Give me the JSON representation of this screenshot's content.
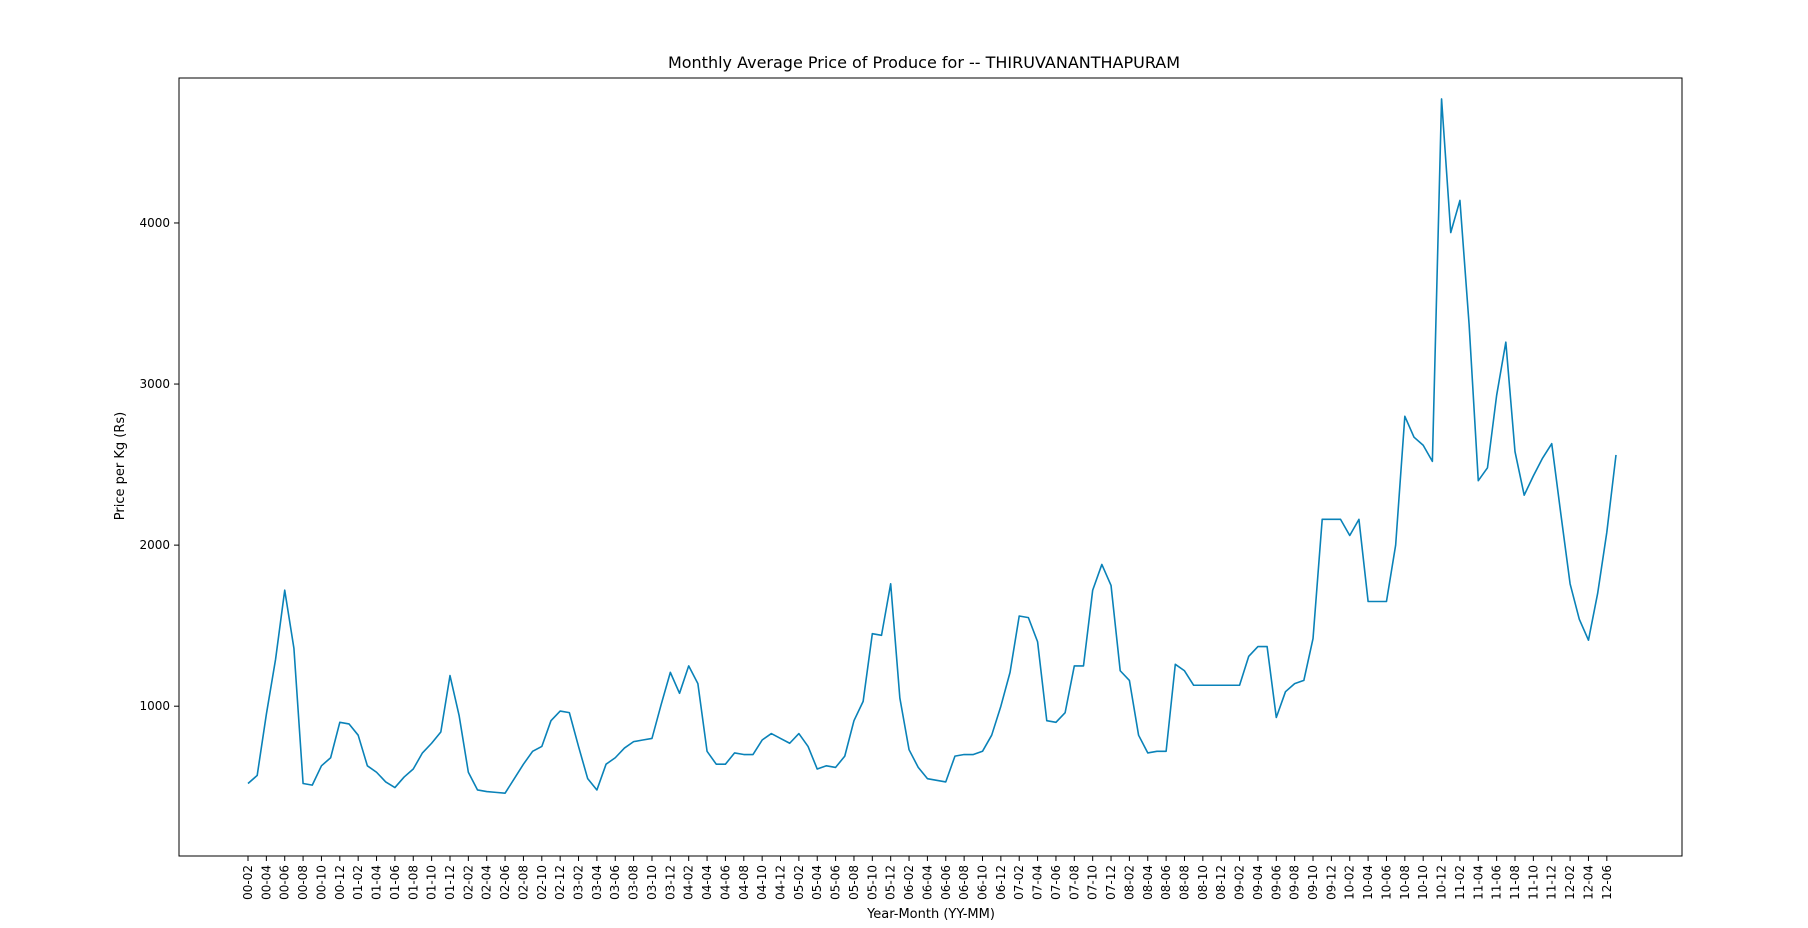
{
  "chart_data": {
    "type": "line",
    "title": "Monthly Average Price of Produce for  --  THIRUVANANTHAPURAM",
    "xlabel": "Year-Month (YY-MM)",
    "ylabel": "Price per Kg (Rs)",
    "ylim": [
      70,
      4900
    ],
    "yticks": [
      1000,
      2000,
      3000,
      4000
    ],
    "grid": false,
    "line_color": "#0a82b8",
    "x_tick_labels": [
      "00-02",
      "00-04",
      "00-06",
      "00-08",
      "00-10",
      "00-12",
      "01-02",
      "01-04",
      "01-06",
      "01-08",
      "01-10",
      "01-12",
      "02-02",
      "02-04",
      "02-06",
      "02-08",
      "02-10",
      "02-12",
      "03-02",
      "03-04",
      "03-06",
      "03-08",
      "03-10",
      "03-12",
      "04-02",
      "04-04",
      "04-06",
      "04-08",
      "04-10",
      "04-12",
      "05-02",
      "05-04",
      "05-06",
      "05-08",
      "05-10",
      "05-12",
      "06-02",
      "06-04",
      "06-06",
      "06-08",
      "06-10",
      "06-12",
      "07-02",
      "07-04",
      "07-06",
      "07-08",
      "07-10",
      "07-12",
      "08-02",
      "08-04",
      "08-06",
      "08-08",
      "08-10",
      "08-12",
      "09-02",
      "09-04",
      "09-06",
      "09-08",
      "09-10",
      "09-12",
      "10-02",
      "10-04",
      "10-06",
      "10-08",
      "10-10",
      "10-12",
      "11-02",
      "11-04",
      "11-06",
      "11-08",
      "11-10",
      "11-12",
      "12-02",
      "12-04",
      "12-06"
    ],
    "series": [
      {
        "values": [
          520,
          570,
          950,
          1290,
          1720,
          1360,
          520,
          510,
          630,
          680,
          900,
          890,
          820,
          630,
          590,
          530,
          495,
          560,
          610,
          710,
          770,
          840,
          1190,
          940,
          590,
          480,
          470,
          465,
          460,
          550,
          640,
          720,
          750,
          910,
          970,
          960,
          750,
          550,
          480,
          640,
          680,
          740,
          780,
          790,
          800,
          1010,
          1210,
          1080,
          1250,
          1140,
          720,
          640,
          640,
          710,
          700,
          700,
          790,
          830,
          800,
          770,
          830,
          750,
          610,
          630,
          620,
          690,
          910,
          1030,
          1450,
          1440,
          1760,
          1050,
          730,
          620,
          550,
          540,
          530,
          690,
          700,
          700,
          720,
          820,
          1000,
          1210,
          1560,
          1550,
          1400,
          910,
          900,
          960,
          1250,
          1250,
          1720,
          1880,
          1750,
          1220,
          1160,
          820,
          710,
          720,
          720,
          1260,
          1220,
          1130,
          1130,
          1130,
          1130,
          1130,
          1130,
          1310,
          1370,
          1370,
          930,
          1090,
          1140,
          1160,
          1420,
          2160,
          2160,
          2160,
          2060,
          2160,
          1650,
          1650,
          1650,
          2000,
          2800,
          2670,
          2620,
          2520,
          4770,
          3940,
          4140,
          3370,
          2400,
          2480,
          2930,
          3260,
          2580,
          2310,
          2430,
          2540,
          2630,
          2190,
          1760,
          1540,
          1410,
          1700,
          2080,
          2560
        ]
      }
    ]
  }
}
